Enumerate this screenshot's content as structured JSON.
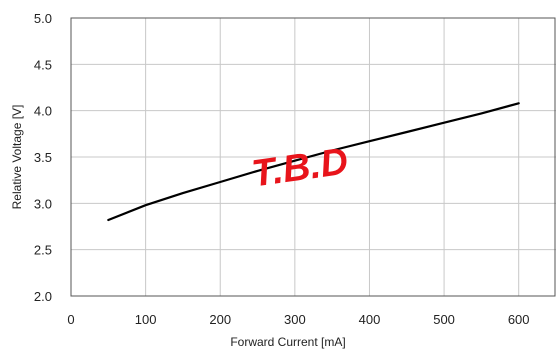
{
  "chart_data": {
    "type": "line",
    "xlabel": "Forward Current [mA]",
    "ylabel": "Relative Voltage [V]",
    "xlim": [
      0,
      650
    ],
    "ylim": [
      2.0,
      5.0
    ],
    "xticks": [
      "0",
      "100",
      "200",
      "300",
      "400",
      "500",
      "600"
    ],
    "yticks": [
      "2.0",
      "2.5",
      "3.0",
      "3.5",
      "4.0",
      "4.5",
      "5.0"
    ],
    "grid": true,
    "series": [
      {
        "x": [
          50,
          100,
          150,
          200,
          250,
          300,
          350,
          400,
          450,
          500,
          550,
          600
        ],
        "y": [
          2.82,
          2.98,
          3.11,
          3.23,
          3.35,
          3.46,
          3.57,
          3.67,
          3.77,
          3.87,
          3.97,
          4.08
        ],
        "color": "#000000"
      }
    ],
    "annotation": "T.B.D",
    "annotation_color": "#e8141b"
  }
}
